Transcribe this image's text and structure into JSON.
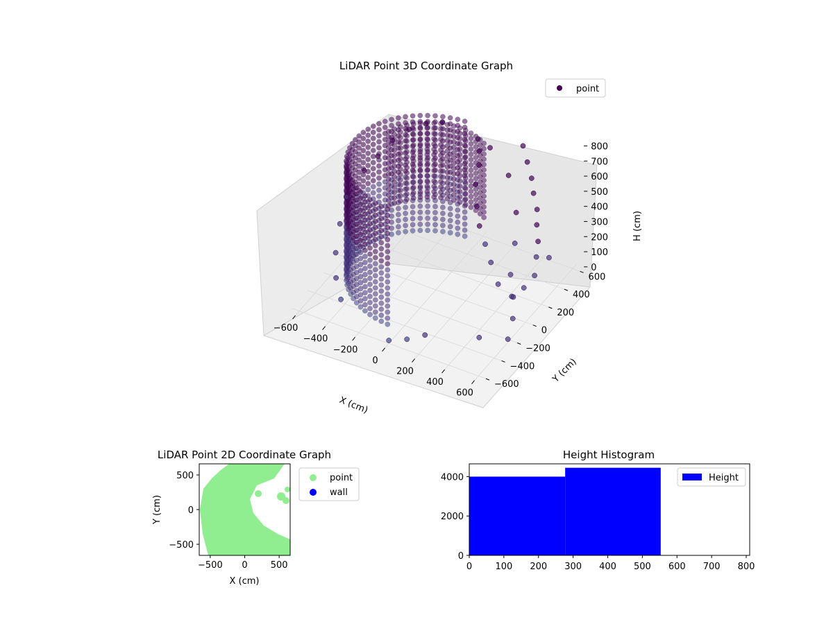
{
  "chart_data": [
    {
      "type": "scatter",
      "projection": "3d",
      "title": "LiDAR Point 3D Coordinate Graph",
      "xlabel": "X (cm)",
      "ylabel": "Y (cm)",
      "zlabel": "H (cm)",
      "xticks": [
        "−600",
        "−400",
        "−200",
        "0",
        "200",
        "400",
        "600"
      ],
      "yticks": [
        "−600",
        "−400",
        "−200",
        "0",
        "200",
        "400",
        "600"
      ],
      "zticks": [
        "0",
        "100",
        "200",
        "300",
        "400",
        "500",
        "600",
        "700",
        "800"
      ],
      "xlim": [
        -650,
        650
      ],
      "ylim": [
        -650,
        650
      ],
      "zlim": [
        0,
        800
      ],
      "zaxis_inverted": true,
      "legend": {
        "placement": "top-right",
        "entries": [
          {
            "name": "point",
            "color": "#440154"
          }
        ]
      },
      "grid": true,
      "colormap": "viridis",
      "series": [
        {
          "name": "point",
          "description_of_structure": "dense curved wall of points",
          "points": [
            {
              "x": -560,
              "y": 150,
              "h": 300
            },
            {
              "x": -520,
              "y": 250,
              "h": 250
            },
            {
              "x": -470,
              "y": 340,
              "h": 180
            },
            {
              "x": -400,
              "y": 420,
              "h": 130
            },
            {
              "x": -320,
              "y": 480,
              "h": 100
            },
            {
              "x": -230,
              "y": 520,
              "h": 80
            },
            {
              "x": -600,
              "y": 0,
              "h": 400
            },
            {
              "x": -580,
              "y": -120,
              "h": 500
            },
            {
              "x": -540,
              "y": -250,
              "h": 600
            },
            {
              "x": -480,
              "y": -360,
              "h": 680
            },
            {
              "x": -400,
              "y": -450,
              "h": 740
            },
            {
              "x": 100,
              "y": 500,
              "h": 120
            },
            {
              "x": 250,
              "y": 450,
              "h": 220
            },
            {
              "x": 380,
              "y": 300,
              "h": 330
            },
            {
              "x": 450,
              "y": 150,
              "h": 420
            },
            {
              "x": 500,
              "y": 0,
              "h": 520
            },
            {
              "x": 550,
              "y": -80,
              "h": 600
            },
            {
              "x": 600,
              "y": 300,
              "h": 550
            }
          ]
        }
      ]
    },
    {
      "type": "scatter",
      "title": "LiDAR Point 2D Coordinate Graph",
      "xlabel": "X (cm)",
      "ylabel": "Y (cm)",
      "xticks": [
        "−500",
        "0",
        "500"
      ],
      "yticks": [
        "−500",
        "0",
        "500"
      ],
      "xlim": [
        -660,
        660
      ],
      "ylim": [
        -660,
        660
      ],
      "legend": {
        "placement": "outside-right",
        "entries": [
          {
            "name": "point",
            "color": "#90ee90"
          },
          {
            "name": "wall",
            "color": "#0000ff"
          }
        ]
      },
      "series": [
        {
          "name": "point",
          "color": "#90ee90",
          "shape": "filled crescent region on left"
        },
        {
          "name": "wall",
          "color": "#0000ff",
          "points": []
        }
      ]
    },
    {
      "type": "bar",
      "subtype": "histogram",
      "title": "Height Histogram",
      "xlabel": "",
      "ylabel": "",
      "xticks": [
        "0",
        "100",
        "200",
        "300",
        "400",
        "500",
        "600",
        "700",
        "800"
      ],
      "yticks": [
        "0",
        "2000",
        "4000"
      ],
      "xlim": [
        0,
        810
      ],
      "ylim": [
        0,
        4650
      ],
      "legend": {
        "placement": "top-right",
        "entries": [
          {
            "name": "Height",
            "color": "#0000ff"
          }
        ]
      },
      "bins": [
        {
          "x0": 0,
          "x1": 277,
          "count": 4000
        },
        {
          "x0": 277,
          "x1": 553,
          "count": 4450
        },
        {
          "x0": 553,
          "x1": 810,
          "count": 0
        }
      ]
    }
  ]
}
